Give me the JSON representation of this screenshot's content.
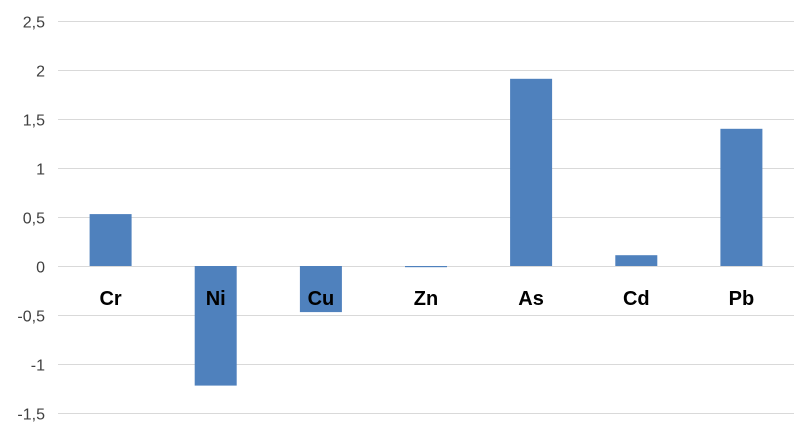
{
  "chart_data": {
    "type": "bar",
    "categories": [
      "Cr",
      "Ni",
      "Cu",
      "Zn",
      "As",
      "Cd",
      "Pb"
    ],
    "values": [
      0.53,
      -1.22,
      -0.47,
      -0.01,
      1.91,
      0.11,
      1.4
    ],
    "ylim": [
      -1.5,
      2.5
    ],
    "yticks": [
      2.5,
      2,
      1.5,
      1,
      0.5,
      0,
      -0.5,
      -1,
      -1.5
    ],
    "ytick_labels": [
      "2,5",
      "2",
      "1,5",
      "1",
      "0,5",
      "0",
      "-0,5",
      "-1",
      "-1,5"
    ],
    "grid": true,
    "legend": "none",
    "bar_color": "#4f81bd",
    "grid_color": "#d9d9d9"
  }
}
